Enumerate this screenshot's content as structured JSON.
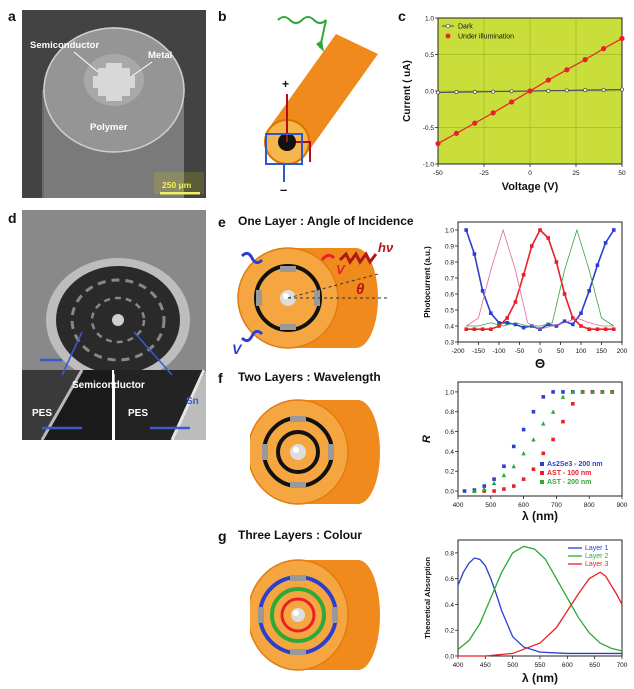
{
  "panels": {
    "a": {
      "letter": "a",
      "labels": {
        "semiconductor": "Semiconductor",
        "metal": "Metal",
        "polymer": "Polymer",
        "scale": "250 μm"
      }
    },
    "b": {
      "letter": "b",
      "plus": "+",
      "minus": "–"
    },
    "c": {
      "letter": "c"
    },
    "d": {
      "letter": "d",
      "labels": {
        "semiconductor": "Semiconductor",
        "pes_left": "PES",
        "pes_right": "PES",
        "sn": "Sn"
      }
    },
    "e": {
      "letter": "e",
      "title": "One Layer : Angle of Incidence",
      "v_left": "V",
      "v_right": "V",
      "hv": "hν",
      "theta": "θ"
    },
    "f": {
      "letter": "f",
      "title": "Two Layers : Wavelength"
    },
    "g": {
      "letter": "g",
      "title": "Three Layers : Colour"
    }
  },
  "colors": {
    "orange": "#f08a1c",
    "light_orange": "#f7b64c",
    "plot_bg": "#c9de3a",
    "red": "#e8202a",
    "blue": "#2a3fd0",
    "green": "#2fa83a",
    "grey": "#9a9a9a"
  },
  "chart_data": [
    {
      "type": "line",
      "panel": "c",
      "xlabel": "Voltage (V)",
      "ylabel": "Current ( uA)",
      "xlim": [
        -50,
        50
      ],
      "ylim": [
        -1.0,
        1.0
      ],
      "xticks": [
        "-50",
        "-25",
        "0",
        "25",
        "50"
      ],
      "yticks": [
        "-1.0",
        "-0.5",
        "0.0",
        "0.5",
        "1.0"
      ],
      "grid": true,
      "legend": "top-left",
      "series": [
        {
          "name": "Dark",
          "x": [
            -50,
            -40,
            -30,
            -20,
            -10,
            0,
            10,
            20,
            30,
            40,
            50
          ],
          "values": [
            -0.02,
            -0.015,
            -0.012,
            -0.008,
            -0.004,
            0,
            0.004,
            0.008,
            0.012,
            0.015,
            0.02
          ]
        },
        {
          "name": "Under illumination",
          "x": [
            -50,
            -40,
            -30,
            -20,
            -10,
            0,
            10,
            20,
            30,
            40,
            50
          ],
          "values": [
            -0.72,
            -0.58,
            -0.44,
            -0.3,
            -0.15,
            0,
            0.15,
            0.29,
            0.43,
            0.58,
            0.72
          ]
        }
      ]
    },
    {
      "type": "scatter",
      "panel": "e",
      "xlabel": "Θ",
      "ylabel": "Photocurrent (a.u.)",
      "xlim": [
        -200,
        200
      ],
      "ylim": [
        0.3,
        1.05
      ],
      "xticks": [
        "-200",
        "-150",
        "-100",
        "-50",
        "0",
        "50",
        "100",
        "150",
        "200"
      ],
      "yticks": [
        "0.3",
        "0.4",
        "0.5",
        "0.6",
        "0.7",
        "0.8",
        "0.9",
        "1.0"
      ],
      "series": [
        {
          "x": [
            -180,
            -160,
            -140,
            -120,
            -100,
            -80,
            -60,
            -40,
            -20,
            0,
            20,
            40,
            60,
            80,
            100,
            120,
            140,
            160,
            180
          ],
          "values": [
            1.0,
            0.85,
            0.62,
            0.48,
            0.42,
            0.42,
            0.41,
            0.39,
            0.4,
            0.38,
            0.41,
            0.4,
            0.43,
            0.41,
            0.48,
            0.62,
            0.78,
            0.92,
            1.0
          ]
        },
        {
          "x": [
            -180,
            -160,
            -140,
            -120,
            -100,
            -80,
            -60,
            -40,
            -20,
            0,
            20,
            40,
            60,
            80,
            100,
            120,
            140,
            160,
            180
          ],
          "values": [
            0.38,
            0.38,
            0.38,
            0.38,
            0.4,
            0.45,
            0.55,
            0.72,
            0.9,
            1.0,
            0.95,
            0.8,
            0.6,
            0.45,
            0.4,
            0.38,
            0.38,
            0.38,
            0.38
          ]
        },
        {
          "x": [
            -180,
            -150,
            -120,
            -90,
            -60,
            -30,
            0,
            30,
            60,
            90,
            120,
            150,
            180
          ],
          "values": [
            0.4,
            0.45,
            0.75,
            1.0,
            0.75,
            0.42,
            0.38,
            0.4,
            0.42,
            0.45,
            0.42,
            0.4,
            0.4
          ]
        },
        {
          "x": [
            -180,
            -150,
            -120,
            -90,
            -60,
            -30,
            0,
            30,
            60,
            90,
            120,
            150,
            180
          ],
          "values": [
            0.4,
            0.4,
            0.42,
            0.4,
            0.42,
            0.4,
            0.4,
            0.42,
            0.75,
            1.0,
            0.75,
            0.45,
            0.4
          ]
        }
      ]
    },
    {
      "type": "scatter",
      "panel": "f",
      "xlabel": "λ (nm)",
      "ylabel": "R",
      "xlim": [
        400,
        900
      ],
      "ylim": [
        -0.05,
        1.1
      ],
      "xticks": [
        "400",
        "500",
        "600",
        "700",
        "800",
        "900"
      ],
      "yticks": [
        "0.0",
        "0.2",
        "0.4",
        "0.6",
        "0.8",
        "1.0"
      ],
      "legend": "bottom-right",
      "series": [
        {
          "name": "As2Se3 - 200 nm",
          "x": [
            420,
            450,
            480,
            510,
            540,
            570,
            600,
            630,
            660,
            690,
            720,
            750,
            780,
            810,
            840,
            870
          ],
          "values": [
            0.0,
            0.01,
            0.05,
            0.12,
            0.25,
            0.45,
            0.62,
            0.8,
            0.95,
            1.0,
            1.0,
            1.0,
            1.0,
            1.0,
            1.0,
            1.0
          ]
        },
        {
          "name": "AST - 100 nm",
          "x": [
            480,
            510,
            540,
            570,
            600,
            630,
            660,
            690,
            720,
            750,
            780,
            810,
            840,
            870
          ],
          "values": [
            0.0,
            0.0,
            0.02,
            0.05,
            0.12,
            0.22,
            0.38,
            0.52,
            0.7,
            0.88,
            1.0,
            1.0,
            1.0,
            1.0
          ]
        },
        {
          "name": "AST - 200 nm",
          "x": [
            450,
            480,
            510,
            540,
            570,
            600,
            630,
            660,
            690,
            720,
            750,
            780,
            810,
            840,
            870
          ],
          "values": [
            0.0,
            0.02,
            0.08,
            0.16,
            0.25,
            0.38,
            0.52,
            0.68,
            0.8,
            0.95,
            1.0,
            1.0,
            1.0,
            1.0,
            1.0
          ]
        }
      ]
    },
    {
      "type": "line",
      "panel": "g",
      "xlabel": "λ (nm)",
      "ylabel": "Theoretical Absorption",
      "xlim": [
        400,
        700
      ],
      "ylim": [
        0.0,
        0.9
      ],
      "xticks": [
        "400",
        "450",
        "500",
        "550",
        "600",
        "650",
        "700"
      ],
      "yticks": [
        "0.0",
        "0.2",
        "0.4",
        "0.6",
        "0.8"
      ],
      "legend": "top-right",
      "series": [
        {
          "name": "Layer 1",
          "x": [
            400,
            410,
            420,
            430,
            440,
            450,
            460,
            470,
            480,
            490,
            500,
            520,
            550,
            600,
            650,
            700
          ],
          "values": [
            0.55,
            0.65,
            0.72,
            0.76,
            0.75,
            0.7,
            0.6,
            0.48,
            0.35,
            0.25,
            0.15,
            0.07,
            0.03,
            0.02,
            0.02,
            0.02
          ]
        },
        {
          "name": "Layer 2",
          "x": [
            400,
            420,
            440,
            460,
            480,
            500,
            520,
            540,
            560,
            580,
            600,
            620,
            640,
            660,
            680,
            700
          ],
          "values": [
            0.05,
            0.12,
            0.25,
            0.45,
            0.65,
            0.8,
            0.85,
            0.83,
            0.75,
            0.6,
            0.45,
            0.3,
            0.18,
            0.1,
            0.06,
            0.04
          ]
        },
        {
          "name": "Layer 3",
          "x": [
            400,
            450,
            500,
            550,
            580,
            600,
            620,
            640,
            660,
            670,
            680,
            690,
            700
          ],
          "values": [
            0.0,
            0.0,
            0.02,
            0.1,
            0.22,
            0.35,
            0.48,
            0.6,
            0.65,
            0.62,
            0.55,
            0.48,
            0.4
          ]
        }
      ]
    }
  ]
}
